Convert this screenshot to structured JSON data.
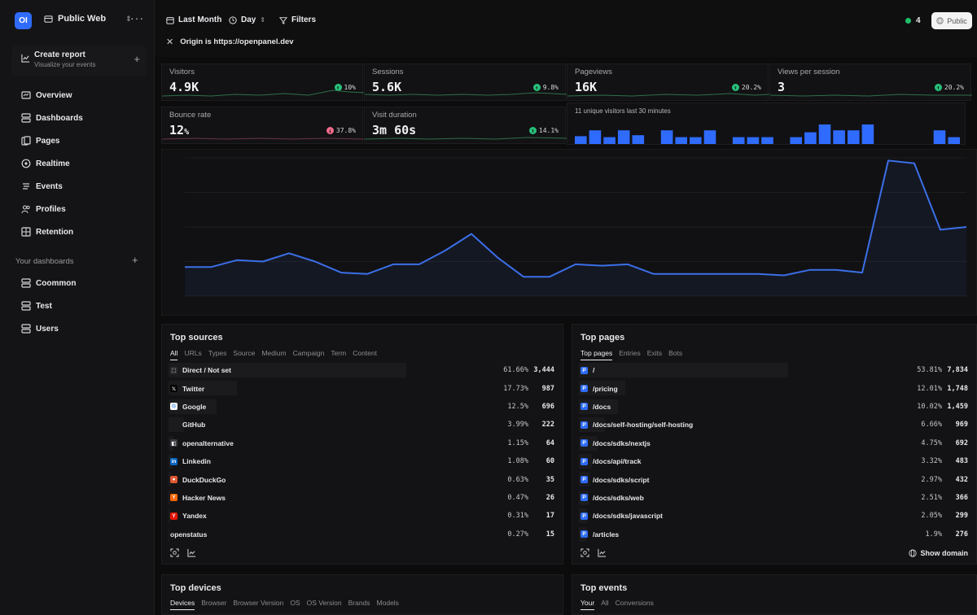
{
  "project": {
    "logo": "OI",
    "name": "Public Web"
  },
  "sidebar": {
    "create_report": {
      "title": "Create report",
      "subtitle": "Visualize your events"
    },
    "items": [
      {
        "label": "Overview",
        "icon": "overview-icon"
      },
      {
        "label": "Dashboards",
        "icon": "dashboards-icon"
      },
      {
        "label": "Pages",
        "icon": "pages-icon"
      },
      {
        "label": "Realtime",
        "icon": "realtime-icon"
      },
      {
        "label": "Events",
        "icon": "events-icon"
      },
      {
        "label": "Profiles",
        "icon": "profiles-icon"
      },
      {
        "label": "Retention",
        "icon": "retention-icon"
      }
    ],
    "dashboards_heading": "Your dashboards",
    "dashboards": [
      {
        "label": "Coommon"
      },
      {
        "label": "Test"
      },
      {
        "label": "Users"
      }
    ]
  },
  "topbar": {
    "range": "Last Month",
    "interval": "Day",
    "filters": "Filters",
    "origin_filter": "Origin is https://openpanel.dev",
    "live_count": "4",
    "public_label": "Public"
  },
  "metrics": [
    {
      "label": "Visitors",
      "value": "4.9K",
      "change": "10%",
      "trend": "up"
    },
    {
      "label": "Sessions",
      "value": "5.6K",
      "change": "9.8%",
      "trend": "up"
    },
    {
      "label": "Pageviews",
      "value": "16K",
      "change": "20.2%",
      "trend": "up"
    },
    {
      "label": "Views per session",
      "value": "3",
      "change": "20.2%",
      "trend": "up"
    },
    {
      "label": "Bounce rate",
      "value": "12",
      "unit": "%",
      "change": "37.8%",
      "trend": "down"
    },
    {
      "label": "Visit duration",
      "value": "3m 60s",
      "change": "14.1%",
      "trend": "up"
    }
  ],
  "unique_visitors": {
    "label": "11 unique visitors last 30 minutes",
    "bars": [
      0.4,
      0.7,
      0.35,
      0.7,
      0.45,
      0,
      0.7,
      0.35,
      0.35,
      0.7,
      0,
      0.35,
      0.35,
      0.35,
      0,
      0.35,
      0.6,
      1,
      0.7,
      0.7,
      1,
      0,
      0,
      0,
      0,
      0.7,
      0.35
    ]
  },
  "chart_data": {
    "type": "line",
    "series": [
      {
        "values": [
          0.21,
          0.21,
          0.26,
          0.25,
          0.31,
          0.25,
          0.17,
          0.16,
          0.23,
          0.23,
          0.33,
          0.45,
          0.28,
          0.14,
          0.14,
          0.23,
          0.22,
          0.23,
          0.16,
          0.16,
          0.16,
          0.16,
          0.16,
          0.15,
          0.19,
          0.19,
          0.17,
          0.98,
          0.96,
          0.48,
          0.5
        ]
      }
    ],
    "ylim": [
      0,
      1
    ],
    "grid": true
  },
  "top_sources": {
    "title": "Top sources",
    "tabs": [
      "All",
      "URLs",
      "Types",
      "Source",
      "Medium",
      "Campaign",
      "Term",
      "Content"
    ],
    "active_tab": "All",
    "rows": [
      {
        "name": "Direct / Not set",
        "pct": "61.66%",
        "count": "3,444",
        "icon": "direct-icon",
        "color": "#2a2a2e",
        "glyph": "⬚"
      },
      {
        "name": "Twitter",
        "pct": "17.73%",
        "count": "987",
        "icon": "x-twitter-icon",
        "color": "#000000",
        "glyph": "𝕏"
      },
      {
        "name": "Google",
        "pct": "12.5%",
        "count": "696",
        "icon": "google-icon",
        "color": "#ffffff",
        "glyph": "G"
      },
      {
        "name": "GitHub",
        "pct": "3.99%",
        "count": "222",
        "icon": "github-icon",
        "color": "#1b1b1e",
        "glyph": ""
      },
      {
        "name": "openalternative",
        "pct": "1.15%",
        "count": "64",
        "icon": "openalternative-icon",
        "color": "#3a3a40",
        "glyph": "◧"
      },
      {
        "name": "Linkedin",
        "pct": "1.08%",
        "count": "60",
        "icon": "linkedin-icon",
        "color": "#0a66c2",
        "glyph": "in"
      },
      {
        "name": "DuckDuckGo",
        "pct": "0.63%",
        "count": "35",
        "icon": "duckduckgo-icon",
        "color": "#de5833",
        "glyph": "●"
      },
      {
        "name": "Hacker News",
        "pct": "0.47%",
        "count": "26",
        "icon": "hacker-news-icon",
        "color": "#ff6600",
        "glyph": "Y"
      },
      {
        "name": "Yandex",
        "pct": "0.31%",
        "count": "17",
        "icon": "yandex-icon",
        "color": "#e61400",
        "glyph": "Y"
      },
      {
        "name": "openstatus",
        "pct": "0.27%",
        "count": "15",
        "icon": "",
        "color": "",
        "glyph": ""
      }
    ]
  },
  "top_pages": {
    "title": "Top pages",
    "tabs": [
      "Top pages",
      "Entries",
      "Exits",
      "Bots"
    ],
    "active_tab": "Top pages",
    "rows": [
      {
        "name": "/",
        "pct": "53.81%",
        "count": "7,834"
      },
      {
        "name": "/pricing",
        "pct": "12.01%",
        "count": "1,748"
      },
      {
        "name": "/docs",
        "pct": "10.02%",
        "count": "1,459"
      },
      {
        "name": "/docs/self-hosting/self-hosting",
        "pct": "6.66%",
        "count": "969"
      },
      {
        "name": "/docs/sdks/nextjs",
        "pct": "4.75%",
        "count": "692"
      },
      {
        "name": "/docs/api/track",
        "pct": "3.32%",
        "count": "483"
      },
      {
        "name": "/docs/sdks/script",
        "pct": "2.97%",
        "count": "432"
      },
      {
        "name": "/docs/sdks/web",
        "pct": "2.51%",
        "count": "366"
      },
      {
        "name": "/docs/sdks/javascript",
        "pct": "2.05%",
        "count": "299"
      },
      {
        "name": "/articles",
        "pct": "1.9%",
        "count": "276"
      }
    ],
    "show_domain": "Show domain"
  },
  "top_devices": {
    "title": "Top devices",
    "tabs": [
      "Devices",
      "Browser",
      "Browser Version",
      "OS",
      "OS Version",
      "Brands",
      "Models"
    ],
    "active_tab": "Devices"
  },
  "top_events": {
    "title": "Top events",
    "tabs": [
      "Your",
      "All",
      "Conversions"
    ],
    "active_tab": "Your"
  },
  "colors": {
    "accent": "#2f6bff",
    "line": "#3b6fe8",
    "up": "#27c07a",
    "down": "#f06a8a"
  }
}
